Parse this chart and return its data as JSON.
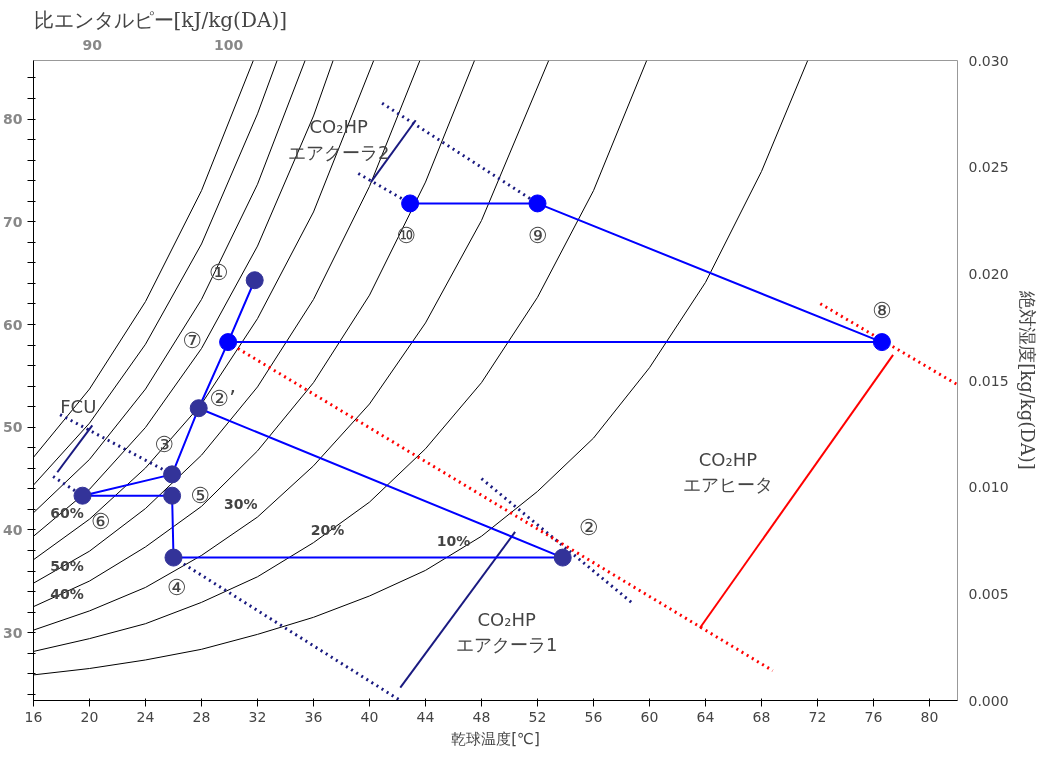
{
  "chart_data": {
    "type": "line",
    "title": "比エンタルピー[kJ/kg(DA)]",
    "xlabel": "乾球温度[℃]",
    "ylabel": "絶対湿度[kg/kg(DA)]",
    "xlim": [
      16,
      82
    ],
    "xticks": [
      16,
      20,
      24,
      28,
      32,
      36,
      40,
      44,
      48,
      52,
      56,
      60,
      64,
      68,
      72,
      76,
      80
    ],
    "ylim": [
      0,
      0.03
    ],
    "yticks": [
      {
        "value": 0,
        "label": "0.000"
      },
      {
        "value": 0.005,
        "label": "0.005"
      },
      {
        "value": 0.01,
        "label": "0.010"
      },
      {
        "value": 0.015,
        "label": "0.015"
      },
      {
        "value": 0.02,
        "label": "0.020"
      },
      {
        "value": 0.025,
        "label": "0.025"
      },
      {
        "value": 0.03,
        "label": "0.030"
      }
    ],
    "y2lim": [
      23.4,
      85.7
    ],
    "y2ticks": [
      {
        "value": 24,
        "label": null
      },
      {
        "value": 26,
        "label": null
      },
      {
        "value": 28,
        "label": null
      },
      30,
      {
        "value": 32,
        "label": null
      },
      {
        "value": 34,
        "label": null
      },
      {
        "value": 36,
        "label": null
      },
      {
        "value": 38,
        "label": null
      },
      40,
      {
        "value": 42,
        "label": null
      },
      {
        "value": 44,
        "label": null
      },
      {
        "value": 46,
        "label": null
      },
      {
        "value": 48,
        "label": null
      },
      50,
      {
        "value": 52,
        "label": null
      },
      {
        "value": 54,
        "label": null
      },
      {
        "value": 56,
        "label": null
      },
      {
        "value": 58,
        "label": null
      },
      60,
      {
        "value": 62,
        "label": null
      },
      {
        "value": 64,
        "label": null
      },
      {
        "value": 66,
        "label": null
      },
      {
        "value": 68,
        "label": null
      },
      70,
      {
        "value": 72,
        "label": null
      },
      {
        "value": 74,
        "label": null
      },
      {
        "value": 76,
        "label": null
      },
      {
        "value": 78,
        "label": null
      },
      80,
      {
        "value": 82,
        "label": null
      },
      {
        "value": 84,
        "label": null
      }
    ],
    "x2lim": [
      85.7,
      153.4
    ],
    "x2ticks": [
      90,
      100
    ],
    "series": [
      {
        "color": "#000000",
        "x": [
          16,
          20,
          24,
          28,
          32,
          36,
          40,
          44,
          48,
          52,
          56,
          60,
          64,
          68,
          71.3
        ],
        "values": [
          0.0012,
          0.0015,
          0.0019,
          0.0024,
          0.0031,
          0.0039,
          0.0049,
          0.0061,
          0.0077,
          0.0098,
          0.0123,
          0.0156,
          0.0196,
          0.0248,
          0.03
        ]
      },
      {
        "color": "#000000",
        "x": [
          16,
          20,
          24,
          28,
          32,
          36,
          40,
          44,
          48,
          52,
          56,
          59.8
        ],
        "values": [
          0.0023,
          0.0029,
          0.0036,
          0.0046,
          0.0058,
          0.0074,
          0.0093,
          0.0118,
          0.0149,
          0.0189,
          0.0239,
          0.03
        ]
      },
      {
        "color": "#000000",
        "x": [
          16,
          20,
          24,
          28,
          32,
          36,
          40,
          44,
          48,
          52.8
        ],
        "values": [
          0.0033,
          0.0042,
          0.0053,
          0.0068,
          0.0086,
          0.011,
          0.0139,
          0.0177,
          0.0225,
          0.03
        ]
      },
      {
        "color": "#000000",
        "x": [
          16,
          20,
          24,
          28,
          32,
          36,
          40,
          44,
          47.5
        ],
        "values": [
          0.0044,
          0.0056,
          0.0072,
          0.0091,
          0.0117,
          0.0149,
          0.019,
          0.0243,
          0.03
        ]
      },
      {
        "color": "#000000",
        "x": [
          16,
          20,
          24,
          28,
          32,
          36,
          40,
          43.6
        ],
        "values": [
          0.0055,
          0.007,
          0.009,
          0.0115,
          0.0147,
          0.0188,
          0.0241,
          0.03
        ]
      },
      {
        "color": "#000000",
        "x": [
          16,
          20,
          24,
          28,
          32,
          36,
          40.3
        ],
        "values": [
          0.0066,
          0.0085,
          0.0109,
          0.0139,
          0.0179,
          0.0229,
          0.03
        ]
      },
      {
        "color": "#000000",
        "x": [
          16,
          20,
          24,
          28,
          32,
          36,
          37.4
        ],
        "values": [
          0.0077,
          0.0099,
          0.0128,
          0.0165,
          0.0213,
          0.0274,
          0.03
        ]
      },
      {
        "color": "#000000",
        "x": [
          16,
          20,
          24,
          28,
          32,
          35.4
        ],
        "values": [
          0.0088,
          0.0113,
          0.0146,
          0.0188,
          0.0242,
          0.03
        ]
      },
      {
        "color": "#000000",
        "x": [
          16,
          20,
          24,
          28,
          32,
          33.4
        ],
        "values": [
          0.0101,
          0.013,
          0.0167,
          0.0214,
          0.0275,
          0.03
        ]
      },
      {
        "color": "#000000",
        "x": [
          16,
          20,
          24,
          28,
          31.7
        ],
        "values": [
          0.0114,
          0.0146,
          0.0187,
          0.0239,
          0.03
        ]
      },
      {
        "color": "#1a1a80",
        "line_style": "dotted",
        "x": [
          17.9,
          25.9
        ],
        "values": [
          0.0134,
          0.0106
        ]
      },
      {
        "color": "#1a1a80",
        "line_style": "dotted",
        "x": [
          17.4,
          19.5
        ],
        "values": [
          0.0105,
          0.0096
        ]
      },
      {
        "color": "#1a1a80",
        "line_style": "dotted",
        "x": [
          26.0,
          42.2
        ],
        "values": [
          0.0067,
          0.0
        ]
      },
      {
        "color": "#1a1a80",
        "line_style": "dotted",
        "x": [
          48.0,
          58.9
        ],
        "values": [
          0.0104,
          0.0045
        ]
      },
      {
        "color": "#1a1a80",
        "line_style": "dotted",
        "x": [
          40.9,
          52.0
        ],
        "values": [
          0.028,
          0.0233
        ]
      },
      {
        "color": "#1a1a80",
        "line_style": "dotted",
        "x": [
          39.2,
          42.9
        ],
        "values": [
          0.0247,
          0.0233
        ]
      },
      {
        "color": "#ff0000",
        "line_style": "dotted",
        "x": [
          30.6,
          68.8
        ],
        "values": [
          0.0165,
          0.0014
        ]
      },
      {
        "color": "#ff0000",
        "line_style": "dotted",
        "x": [
          72.2,
          82
        ],
        "values": [
          0.0186,
          0.0148
        ]
      },
      {
        "color": "#1a1a80",
        "x": [
          17.7,
          20.2
        ],
        "values": [
          0.0107,
          0.0129
        ]
      },
      {
        "color": "#1a1a80",
        "x": [
          43.3,
          40.1
        ],
        "values": [
          0.0272,
          0.0243
        ]
      },
      {
        "color": "#1a1a80",
        "x": [
          50.4,
          42.2
        ],
        "values": [
          0.0079,
          0.0006
        ]
      },
      {
        "color": "#ff0000",
        "x": [
          77.4,
          63.6
        ],
        "values": [
          0.0162,
          0.0034
        ]
      },
      {
        "color": "#0000ff",
        "x": [
          31.8,
          29.9,
          27.8,
          53.8,
          26.0,
          25.9,
          19.5,
          25.9,
          27.8
        ],
        "values": [
          0.0197,
          0.0168,
          0.0137,
          0.0067,
          0.0067,
          0.0096,
          0.0096,
          0.0106,
          0.0137
        ]
      },
      {
        "color": "#0000ff",
        "x": [
          29.9,
          76.6,
          52.0,
          42.9
        ],
        "values": [
          0.0168,
          0.0168,
          0.0233,
          0.0233
        ]
      },
      {
        "type": "scatter",
        "marker": "circle",
        "x": [
          31.8,
          29.9,
          27.8,
          25.9,
          25.9,
          19.5,
          26.0,
          53.8,
          76.6,
          52.0,
          42.9
        ],
        "values": [
          0.0197,
          0.0168,
          0.0137,
          0.0106,
          0.0096,
          0.0096,
          0.0067,
          0.0067,
          0.0168,
          0.0233,
          0.0233
        ],
        "colors": [
          "#333399",
          "#0000ff",
          "#333399",
          "#333399",
          "#333399",
          "#333399",
          "#333399",
          "#333399",
          "#0000ff",
          "#0000ff",
          "#0000ff"
        ]
      }
    ],
    "annotations": [
      "60%",
      "50%",
      "40%",
      "30%",
      "20%",
      "10%",
      "FCU",
      "CO₂HP\nエアクーラ2",
      "CO₂HP\nエアヒータ",
      "CO₂HP\nエアクーラ1",
      {
        "text": "①",
        "x": 31.8,
        "y": 0.0197
      },
      {
        "text": "⑦",
        "x": 29.9,
        "y": 0.0168
      },
      {
        "text": "②’",
        "x": 27.8,
        "y": 0.0137
      },
      {
        "text": "③",
        "x": 25.9,
        "y": 0.0106
      },
      {
        "text": "⑤",
        "x": 25.9,
        "y": 0.0096
      },
      {
        "text": "⑥",
        "x": 19.5,
        "y": 0.0096
      },
      {
        "text": "④",
        "x": 26.0,
        "y": 0.0067
      },
      {
        "text": "②",
        "x": 53.8,
        "y": 0.0067
      },
      {
        "text": "⑧",
        "x": 76.6,
        "y": 0.0168
      },
      {
        "text": "⑨",
        "x": 52.0,
        "y": 0.0233
      },
      {
        "text": "⑩",
        "x": 42.9,
        "y": 0.0233
      }
    ]
  }
}
